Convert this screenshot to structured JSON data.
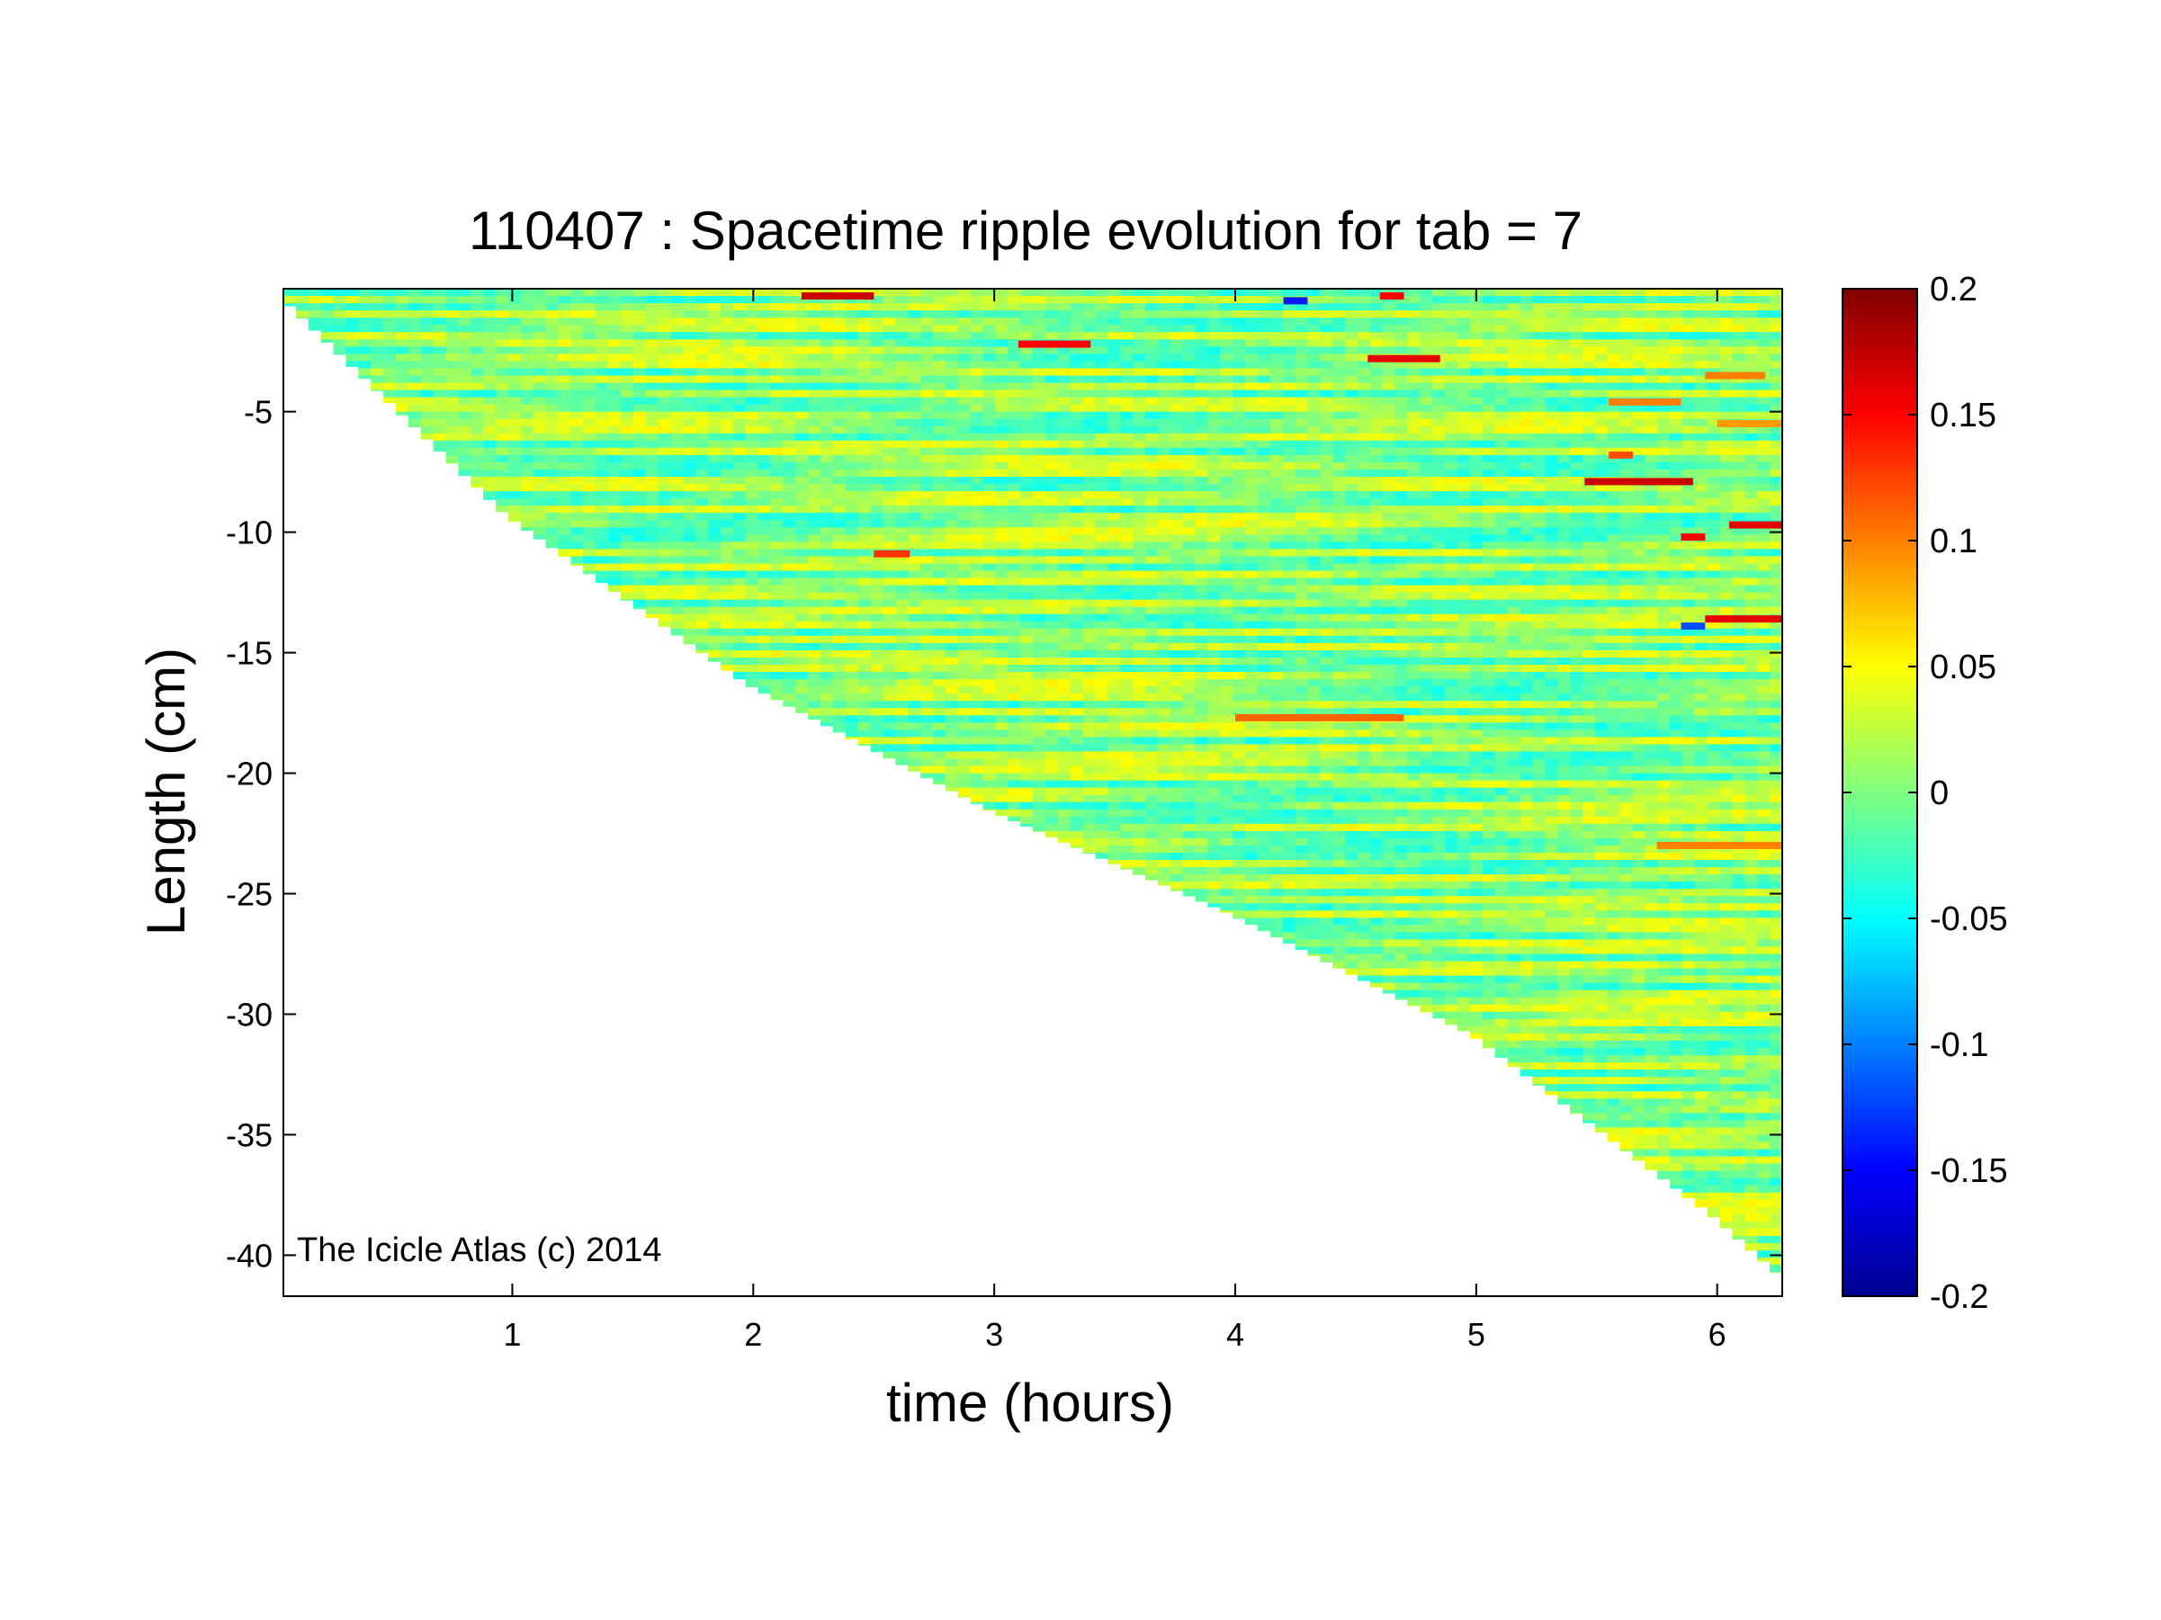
{
  "chart_data": {
    "type": "heatmap",
    "title": "110407 : Spacetime ripple evolution for tab = 7",
    "xlabel": "time (hours)",
    "ylabel": "Length (cm)",
    "xlim": [
      0.05,
      6.27
    ],
    "ylim": [
      -41.7,
      0.1
    ],
    "x_ticks": [
      1,
      2,
      3,
      4,
      5,
      6
    ],
    "x_tick_labels": [
      "1",
      "2",
      "3",
      "4",
      "5",
      "6"
    ],
    "y_ticks": [
      -5,
      -10,
      -15,
      -20,
      -25,
      -30,
      -35,
      -40
    ],
    "y_tick_labels": [
      "-5",
      "-10",
      "-15",
      "-20",
      "-25",
      "-30",
      "-35",
      "-40"
    ],
    "colormap": "jet",
    "clim": [
      -0.2,
      0.2
    ],
    "colorbar_ticks": [
      0.2,
      0.15,
      0.1,
      0.05,
      0,
      -0.05,
      -0.1,
      -0.15,
      -0.2
    ],
    "colorbar_tick_labels": [
      "0.2",
      "0.15",
      "0.1",
      "0.05",
      "0",
      "-0.05",
      "-0.1",
      "-0.15",
      "-0.2"
    ],
    "data_boundary": {
      "description_points": [
        [
          0.05,
          -0.1
        ],
        [
          1.0,
          -9.3
        ],
        [
          2.0,
          -16.3
        ],
        [
          3.0,
          -21.5
        ],
        [
          4.0,
          -25.8
        ],
        [
          5.0,
          -30.8
        ],
        [
          6.0,
          -38.3
        ],
        [
          6.27,
          -40.7
        ]
      ]
    },
    "typical_value_range": [
      -0.03,
      0.04
    ],
    "notable_features": [
      {
        "t_start": 2.2,
        "t_end": 2.5,
        "length": -0.2,
        "value": 0.17
      },
      {
        "t_start": 3.1,
        "t_end": 3.4,
        "length": -2.2,
        "value": 0.15
      },
      {
        "t_start": 4.55,
        "t_end": 4.85,
        "length": -2.8,
        "value": 0.16
      },
      {
        "t_start": 4.6,
        "t_end": 4.7,
        "length": -0.2,
        "value": 0.15
      },
      {
        "t_start": 5.45,
        "t_end": 5.9,
        "length": -7.9,
        "value": 0.17
      },
      {
        "t_start": 5.55,
        "t_end": 5.65,
        "length": -6.8,
        "value": 0.12
      },
      {
        "t_start": 6.05,
        "t_end": 6.27,
        "length": -9.7,
        "value": 0.16
      },
      {
        "t_start": 5.85,
        "t_end": 5.95,
        "length": -10.2,
        "value": 0.15
      },
      {
        "t_start": 5.95,
        "t_end": 6.27,
        "length": -13.6,
        "value": 0.16
      },
      {
        "t_start": 5.85,
        "t_end": 5.95,
        "length": -13.9,
        "value": -0.12
      },
      {
        "t_start": 2.5,
        "t_end": 2.65,
        "length": -10.9,
        "value": 0.13
      },
      {
        "t_start": 4.0,
        "t_end": 4.7,
        "length": -17.7,
        "value": 0.11
      },
      {
        "t_start": 4.2,
        "t_end": 4.3,
        "length": -0.4,
        "value": -0.14
      },
      {
        "t_start": 5.55,
        "t_end": 5.85,
        "length": -4.6,
        "value": 0.1
      },
      {
        "t_start": 5.95,
        "t_end": 6.2,
        "length": -3.5,
        "value": 0.1
      },
      {
        "t_start": 5.75,
        "t_end": 6.27,
        "length": -23.0,
        "value": 0.1
      },
      {
        "t_start": 6.0,
        "t_end": 6.27,
        "length": -5.5,
        "value": 0.09
      }
    ]
  },
  "watermark": "The Icicle Atlas (c) 2014"
}
